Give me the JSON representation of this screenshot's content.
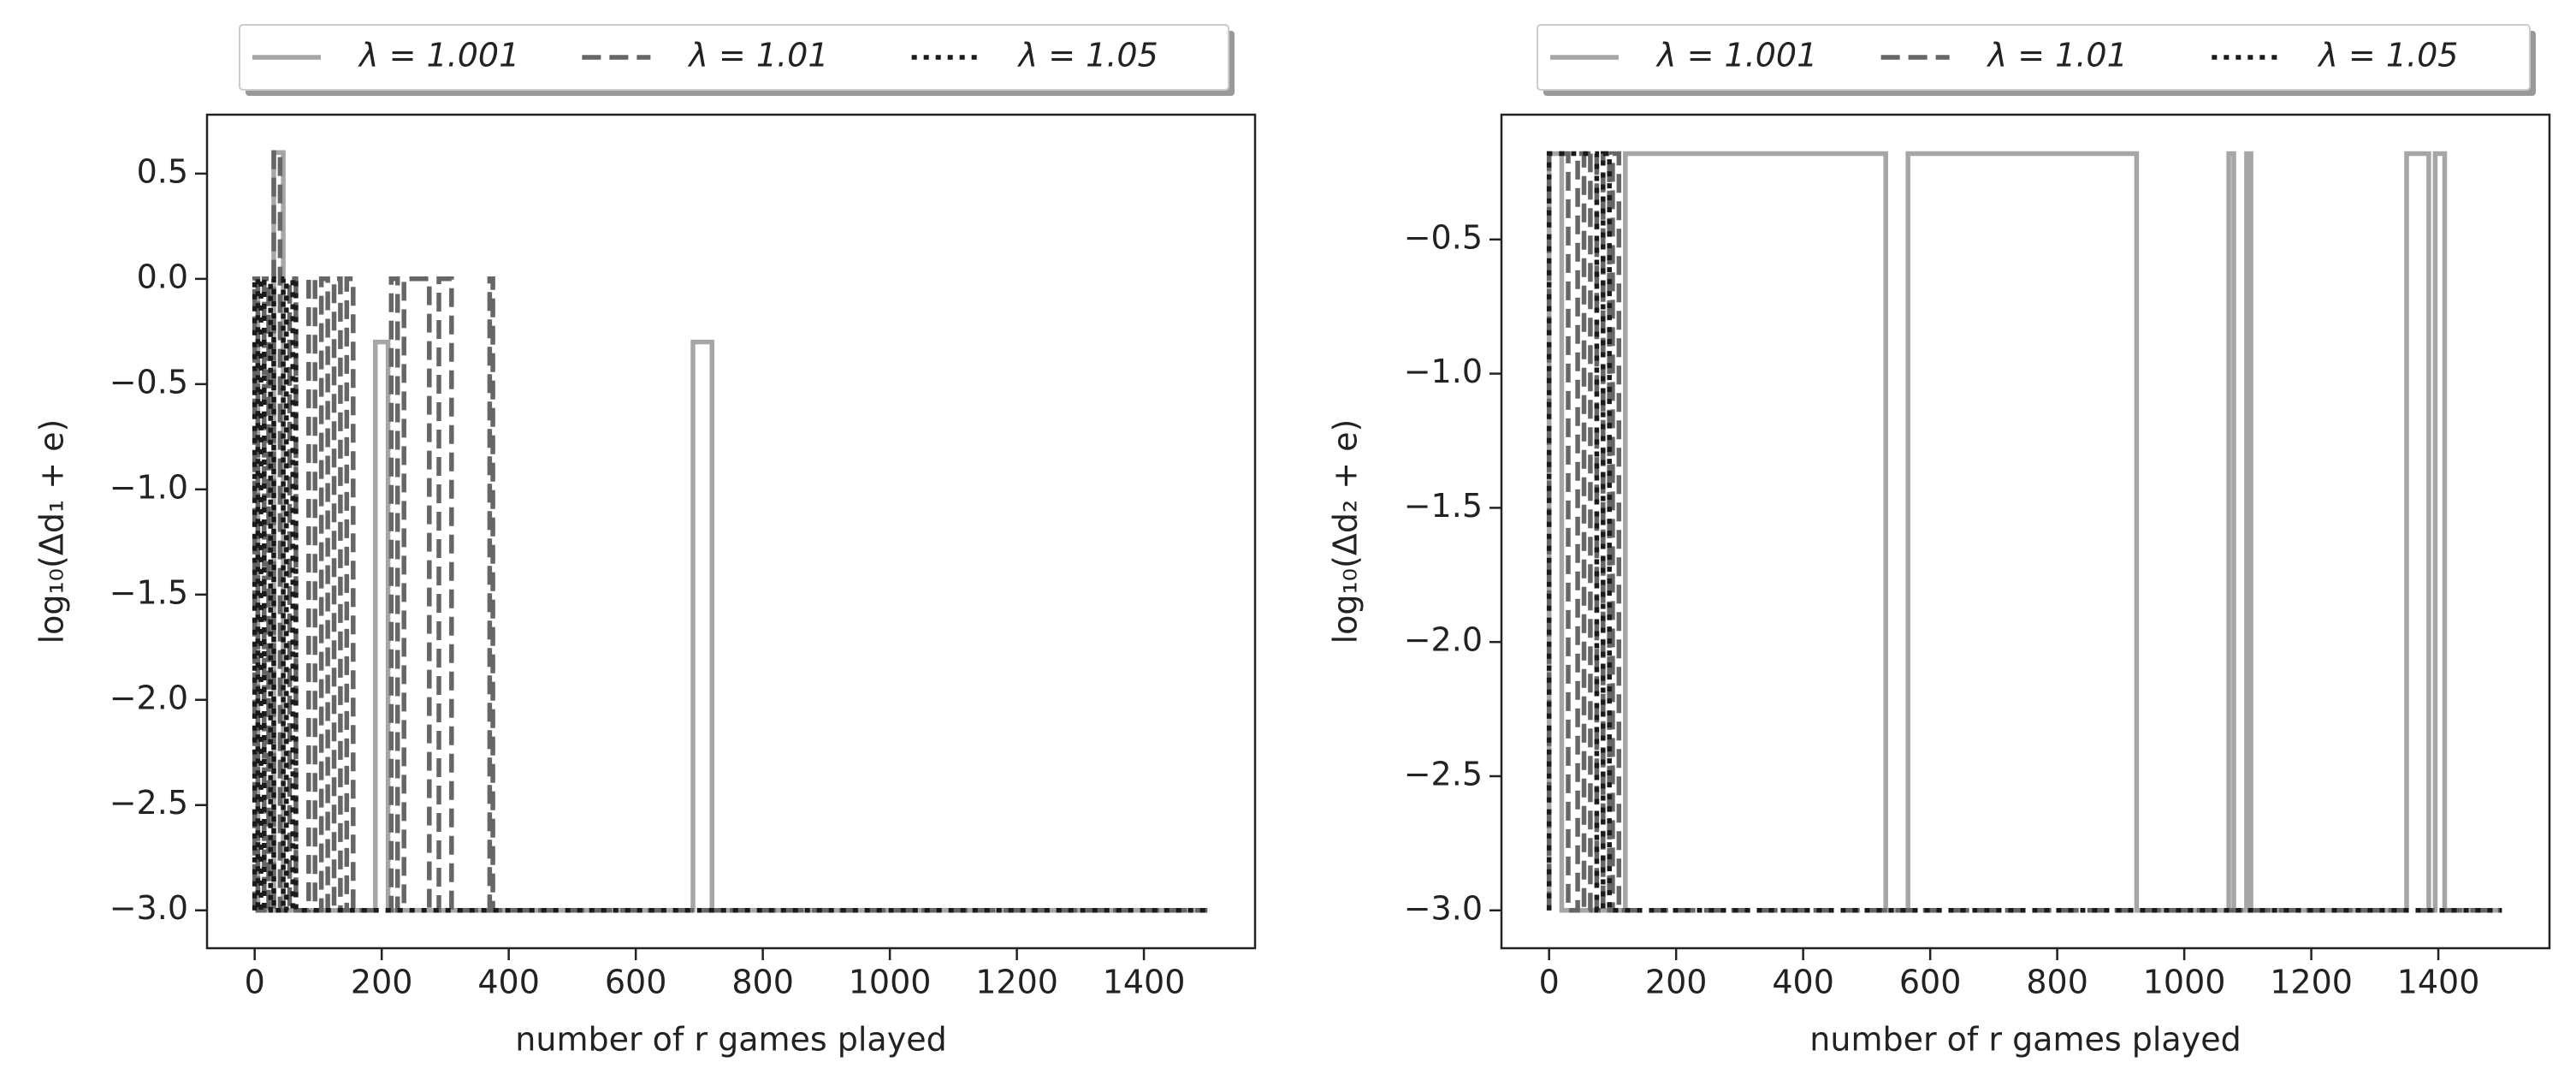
{
  "chart_data": [
    {
      "type": "line",
      "xlabel": "number of r games played",
      "ylabel": "log₁₀(Δd₁ + e)",
      "xlim": [
        -75,
        1575
      ],
      "ylim": [
        -3.18,
        0.78
      ],
      "xticks": [
        0,
        200,
        400,
        600,
        800,
        1000,
        1200,
        1400
      ],
      "yticks": [
        0.5,
        {
          "value": 0.0,
          "label": "0.0"
        },
        {
          "value": -0.5,
          "label": "−0.5"
        },
        {
          "value": -1.0,
          "label": "−1.0"
        },
        {
          "value": -1.5,
          "label": "−1.5"
        },
        {
          "value": -2.0,
          "label": "−2.0"
        },
        {
          "value": -2.5,
          "label": "−2.5"
        },
        {
          "value": -3.0,
          "label": "−3.0"
        }
      ],
      "series": [
        {
          "name": "λ = 1.001",
          "color": "#a6a6a6",
          "dash": "solid",
          "x": [
            0,
            5,
            5,
            30,
            30,
            45,
            45,
            190,
            190,
            210,
            210,
            690,
            690,
            720,
            720,
            1500
          ],
          "values": [
            0,
            0,
            -3,
            -3,
            0.6,
            0.6,
            -3,
            -3,
            -0.3,
            -0.3,
            -3,
            -3,
            -0.3,
            -0.3,
            -3,
            -3
          ]
        },
        {
          "name": "λ = 1.01",
          "color": "#666666",
          "dash": "dashed",
          "x": [
            0,
            0,
            5,
            5,
            15,
            15,
            22,
            22,
            30,
            30,
            40,
            40,
            55,
            55,
            65,
            65,
            85,
            85,
            95,
            95,
            105,
            105,
            115,
            115,
            125,
            125,
            135,
            135,
            145,
            145,
            155,
            155,
            215,
            215,
            225,
            225,
            235,
            235,
            275,
            275,
            290,
            290,
            310,
            310,
            370,
            370,
            375,
            375,
            1500
          ],
          "values": [
            -3,
            0,
            0,
            -3,
            -3,
            0,
            0,
            -3,
            -3,
            0.6,
            0.6,
            -3,
            -3,
            0,
            0,
            -3,
            -3,
            0,
            0,
            -3,
            -3,
            0,
            0,
            -3,
            -3,
            0,
            0,
            -3,
            -3,
            0,
            0,
            -3,
            -3,
            0,
            0,
            -3,
            -3,
            0,
            0,
            -3,
            -3,
            0,
            0,
            -3,
            -3,
            0,
            0,
            -3,
            -3
          ]
        },
        {
          "name": "λ = 1.05",
          "color": "#1a1a1a",
          "dash": "dotted",
          "x": [
            0,
            0,
            5,
            5,
            10,
            10,
            15,
            15,
            25,
            25,
            30,
            30,
            45,
            45,
            50,
            50,
            60,
            60,
            65,
            65,
            1500
          ],
          "values": [
            -3,
            0,
            0,
            -3,
            -3,
            0,
            0,
            -3,
            -3,
            0,
            0,
            -3,
            -3,
            0,
            0,
            -3,
            -3,
            0,
            0,
            -3,
            -3
          ]
        }
      ]
    },
    {
      "type": "line",
      "xlabel": "number of r games played",
      "ylabel": "log₁₀(Δd₂ + e)",
      "xlim": [
        -75,
        1575
      ],
      "ylim": [
        -3.141,
        -0.035
      ],
      "xticks": [
        0,
        200,
        400,
        600,
        800,
        1000,
        1200,
        1400
      ],
      "yticks": [
        {
          "value": -0.5,
          "label": "−0.5"
        },
        {
          "value": -1.0,
          "label": "−1.0"
        },
        {
          "value": -1.5,
          "label": "−1.5"
        },
        {
          "value": -2.0,
          "label": "−2.0"
        },
        {
          "value": -2.5,
          "label": "−2.5"
        },
        {
          "value": -3.0,
          "label": "−3.0"
        }
      ],
      "series": [
        {
          "name": "λ = 1.001",
          "color": "#a6a6a6",
          "dash": "solid",
          "x": [
            0,
            0,
            20,
            20,
            120,
            120,
            530,
            530,
            565,
            565,
            925,
            925,
            1070,
            1070,
            1078,
            1078,
            1098,
            1098,
            1105,
            1105,
            1350,
            1350,
            1385,
            1385,
            1395,
            1395,
            1410,
            1410,
            1500
          ],
          "values": [
            -3,
            -0.18,
            -0.18,
            -3,
            -3,
            -0.18,
            -0.18,
            -3,
            -3,
            -0.18,
            -0.18,
            -3,
            -3,
            -0.18,
            -0.18,
            -3,
            -3,
            -0.18,
            -0.18,
            -3,
            -3,
            -0.18,
            -0.18,
            -3,
            -3,
            -0.18,
            -0.18,
            -3,
            -3
          ]
        },
        {
          "name": "λ = 1.01",
          "color": "#666666",
          "dash": "dashed",
          "x": [
            0,
            0,
            30,
            30,
            45,
            45,
            55,
            55,
            65,
            65,
            75,
            75,
            85,
            85,
            95,
            95,
            100,
            100,
            110,
            110,
            1500
          ],
          "values": [
            -3,
            -0.18,
            -0.18,
            -3,
            -3,
            -0.18,
            -0.18,
            -3,
            -3,
            -0.18,
            -0.18,
            -3,
            -3,
            -0.18,
            -0.18,
            -3,
            -3,
            -0.18,
            -0.18,
            -3,
            -3
          ]
        },
        {
          "name": "λ = 1.05",
          "color": "#1a1a1a",
          "dash": "dotted",
          "x": [
            0,
            0,
            75,
            75,
            85,
            85,
            95,
            95,
            1500
          ],
          "values": [
            -3,
            -0.18,
            -0.18,
            -3,
            -3,
            -0.18,
            -0.18,
            -3,
            -3
          ]
        }
      ]
    }
  ]
}
